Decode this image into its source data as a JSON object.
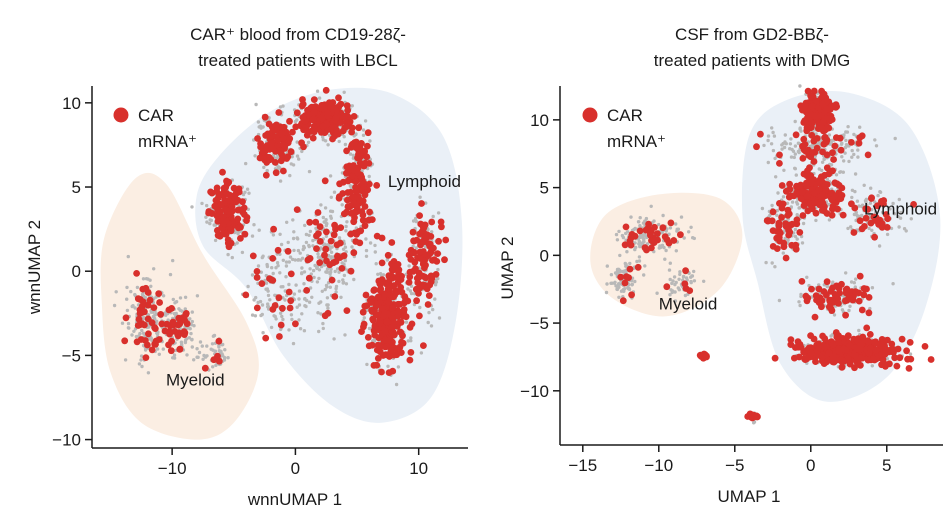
{
  "colors": {
    "car_positive": "#d8302c",
    "car_negative": "#b8b8b8",
    "lymphoid_region": "#eaf0f7",
    "myeloid_region": "#fbeee3",
    "axis": "#1a1a1a"
  },
  "chart_data": [
    {
      "type": "scatter",
      "title_line1": "CAR⁺ blood from CD19-28ζ-",
      "title_line2": "treated patients with LBCL",
      "xlabel": "wnnUMAP 1",
      "ylabel": "wnnUMAP 2",
      "xlim": [
        -16.5,
        14
      ],
      "ylim": [
        -10.5,
        11
      ],
      "xticks": [
        -10,
        0,
        10
      ],
      "xtick_labels": [
        "−10",
        "0",
        "10"
      ],
      "yticks": [
        -10,
        -5,
        0,
        5,
        10
      ],
      "ytick_labels": [
        "−10",
        "−5",
        "0",
        "5",
        "10"
      ],
      "legend": {
        "position": "top-left",
        "line1": "CAR",
        "line2": "mRNA⁺"
      },
      "regions": [
        {
          "name": "Lymphoid",
          "label_at": [
            7.5,
            5
          ],
          "polygon": [
            [
              -8,
              4.5
            ],
            [
              -6,
              7
            ],
            [
              -2,
              9.5
            ],
            [
              3,
              10.8
            ],
            [
              8,
              10.5
            ],
            [
              12,
              8
            ],
            [
              13.5,
              3
            ],
            [
              13,
              -3
            ],
            [
              11,
              -7.5
            ],
            [
              7,
              -9
            ],
            [
              3,
              -8
            ],
            [
              -1,
              -5
            ],
            [
              -4,
              -1
            ],
            [
              -7.5,
              1.5
            ]
          ]
        },
        {
          "name": "Myeloid",
          "label_at": [
            -10.5,
            -6.8
          ],
          "polygon": [
            [
              -13,
              5.5
            ],
            [
              -10.5,
              5.2
            ],
            [
              -7.5,
              1
            ],
            [
              -4,
              -3
            ],
            [
              -3,
              -6
            ],
            [
              -5,
              -9
            ],
            [
              -8,
              -10
            ],
            [
              -12.5,
              -9
            ],
            [
              -15,
              -6
            ],
            [
              -15.7,
              -2
            ],
            [
              -15.5,
              2
            ]
          ]
        }
      ],
      "clusters": [
        {
          "center": [
            -5.5,
            3.5
          ],
          "spread": [
            1.5,
            1.6
          ],
          "grey": 140,
          "red": 110
        },
        {
          "center": [
            -1.5,
            7.5
          ],
          "spread": [
            1.6,
            1.6
          ],
          "grey": 140,
          "red": 90
        },
        {
          "center": [
            2.5,
            9
          ],
          "spread": [
            2.2,
            1.1
          ],
          "grey": 140,
          "red": 170
        },
        {
          "center": [
            5,
            5
          ],
          "spread": [
            1.2,
            3.5
          ],
          "grey": 110,
          "red": 120
        },
        {
          "center": [
            7.5,
            -2.5
          ],
          "spread": [
            1.6,
            2.8
          ],
          "grey": 180,
          "red": 230
        },
        {
          "center": [
            10.5,
            0.5
          ],
          "spread": [
            1.3,
            3
          ],
          "grey": 80,
          "red": 90
        },
        {
          "center": [
            2.5,
            1
          ],
          "spread": [
            2,
            3
          ],
          "grey": 200,
          "red": 40
        },
        {
          "center": [
            -1.5,
            -1
          ],
          "spread": [
            2.5,
            3
          ],
          "grey": 120,
          "red": 25
        },
        {
          "center": [
            -12,
            -2.5
          ],
          "spread": [
            1.6,
            2.5
          ],
          "grey": 160,
          "red": 40
        },
        {
          "center": [
            -9.5,
            -3.5
          ],
          "spread": [
            1.4,
            1.5
          ],
          "grey": 110,
          "red": 30
        },
        {
          "center": [
            -6.5,
            -5
          ],
          "spread": [
            1.2,
            0.9
          ],
          "grey": 50,
          "red": 5
        }
      ]
    },
    {
      "type": "scatter",
      "title_line1": "CSF from GD2-BBζ-",
      "title_line2": "treated patients with DMG",
      "xlabel": "UMAP 1",
      "ylabel": "UMAP 2",
      "xlim": [
        -16.5,
        8.7
      ],
      "ylim": [
        -14,
        12.5
      ],
      "xticks": [
        -15,
        -10,
        -5,
        0,
        5
      ],
      "xtick_labels": [
        "−15",
        "−10",
        "−5",
        "0",
        "5"
      ],
      "yticks": [
        -10,
        -5,
        0,
        5,
        10
      ],
      "ytick_labels": [
        "−10",
        "−5",
        "0",
        "5",
        "10"
      ],
      "legend": {
        "position": "top-left",
        "line1": "CAR",
        "line2": "mRNA⁺"
      },
      "regions": [
        {
          "name": "Lymphoid",
          "label_at": [
            3.5,
            3
          ],
          "polygon": [
            [
              -4,
              9
            ],
            [
              -1.5,
              11.5
            ],
            [
              2.5,
              12
            ],
            [
              6.5,
              9.5
            ],
            [
              8.5,
              3
            ],
            [
              7.5,
              -4
            ],
            [
              5,
              -9
            ],
            [
              1,
              -10.8
            ],
            [
              -2,
              -8
            ],
            [
              -3.5,
              -2
            ],
            [
              -4.5,
              3
            ]
          ]
        },
        {
          "name": "Myeloid",
          "label_at": [
            -10,
            -4
          ],
          "polygon": [
            [
              -13.5,
              3
            ],
            [
              -10,
              4.5
            ],
            [
              -6,
              4.2
            ],
            [
              -4.5,
              1.5
            ],
            [
              -6,
              -2.5
            ],
            [
              -9.5,
              -4.5
            ],
            [
              -13,
              -3.2
            ],
            [
              -14.5,
              -0.5
            ]
          ]
        }
      ],
      "clusters": [
        {
          "center": [
            0.5,
            10.5
          ],
          "spread": [
            1,
            1.4
          ],
          "grey": 80,
          "red": 130
        },
        {
          "center": [
            0.5,
            8
          ],
          "spread": [
            2.8,
            1.4
          ],
          "grey": 190,
          "red": 40
        },
        {
          "center": [
            0.3,
            4.5
          ],
          "spread": [
            1.8,
            1.6
          ],
          "grey": 120,
          "red": 140
        },
        {
          "center": [
            -1.8,
            2
          ],
          "spread": [
            1.2,
            1.8
          ],
          "grey": 80,
          "red": 40
        },
        {
          "center": [
            4,
            3
          ],
          "spread": [
            2,
            1.5
          ],
          "grey": 100,
          "red": 30
        },
        {
          "center": [
            1.5,
            -3
          ],
          "spread": [
            2.5,
            1.2
          ],
          "grey": 80,
          "red": 60
        },
        {
          "center": [
            2.5,
            -7
          ],
          "spread": [
            3,
            1
          ],
          "grey": 150,
          "red": 380
        },
        {
          "center": [
            -10.5,
            1.5
          ],
          "spread": [
            1.8,
            1.2
          ],
          "grey": 130,
          "red": 30
        },
        {
          "center": [
            -12.2,
            -1.8
          ],
          "spread": [
            1,
            1.2
          ],
          "grey": 90,
          "red": 8
        },
        {
          "center": [
            -8.5,
            -2
          ],
          "spread": [
            1,
            1
          ],
          "grey": 50,
          "red": 5
        },
        {
          "center": [
            -7.1,
            -7.4
          ],
          "spread": [
            0.3,
            0.2
          ],
          "grey": 8,
          "red": 10
        },
        {
          "center": [
            -3.8,
            -12
          ],
          "spread": [
            0.4,
            0.35
          ],
          "grey": 6,
          "red": 12
        }
      ]
    }
  ]
}
